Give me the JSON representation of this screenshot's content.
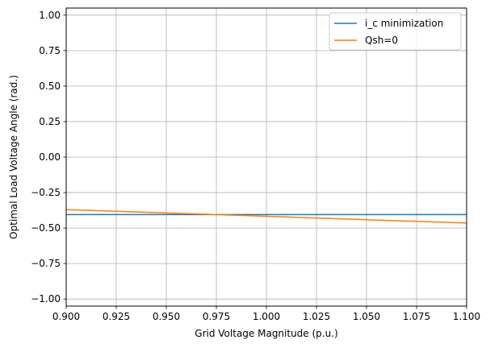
{
  "chart_data": {
    "type": "line",
    "title": "",
    "xlabel": "Grid Voltage Magnitude (p.u.)",
    "ylabel": "Optimal Load Voltage Angle (rad.)",
    "xlim": [
      0.9,
      1.1
    ],
    "ylim": [
      -1.05,
      1.05
    ],
    "grid": true,
    "legend_position": "top-right",
    "x_ticks": [
      0.9,
      0.925,
      0.95,
      0.975,
      1.0,
      1.025,
      1.05,
      1.075,
      1.1
    ],
    "x_tick_labels": [
      "0.900",
      "0.925",
      "0.950",
      "0.975",
      "1.000",
      "1.025",
      "1.050",
      "1.075",
      "1.100"
    ],
    "y_ticks": [
      -1.0,
      -0.75,
      -0.5,
      -0.25,
      0.0,
      0.25,
      0.5,
      0.75,
      1.0
    ],
    "y_tick_labels": [
      "−1.00",
      "−0.75",
      "−0.50",
      "−0.25",
      "0.00",
      "0.25",
      "0.50",
      "0.75",
      "1.00"
    ],
    "series": [
      {
        "name": "i_c minimization",
        "color": "#1f77b4",
        "x": [
          0.9,
          1.1
        ],
        "y": [
          -0.405,
          -0.405
        ]
      },
      {
        "name": "Qsh=0",
        "color": "#ff7f0e",
        "x": [
          0.9,
          0.925,
          0.95,
          0.975,
          1.0,
          1.025,
          1.05,
          1.075,
          1.1
        ],
        "y": [
          -0.37,
          -0.382,
          -0.394,
          -0.405,
          -0.417,
          -0.429,
          -0.441,
          -0.453,
          -0.465
        ]
      }
    ]
  }
}
